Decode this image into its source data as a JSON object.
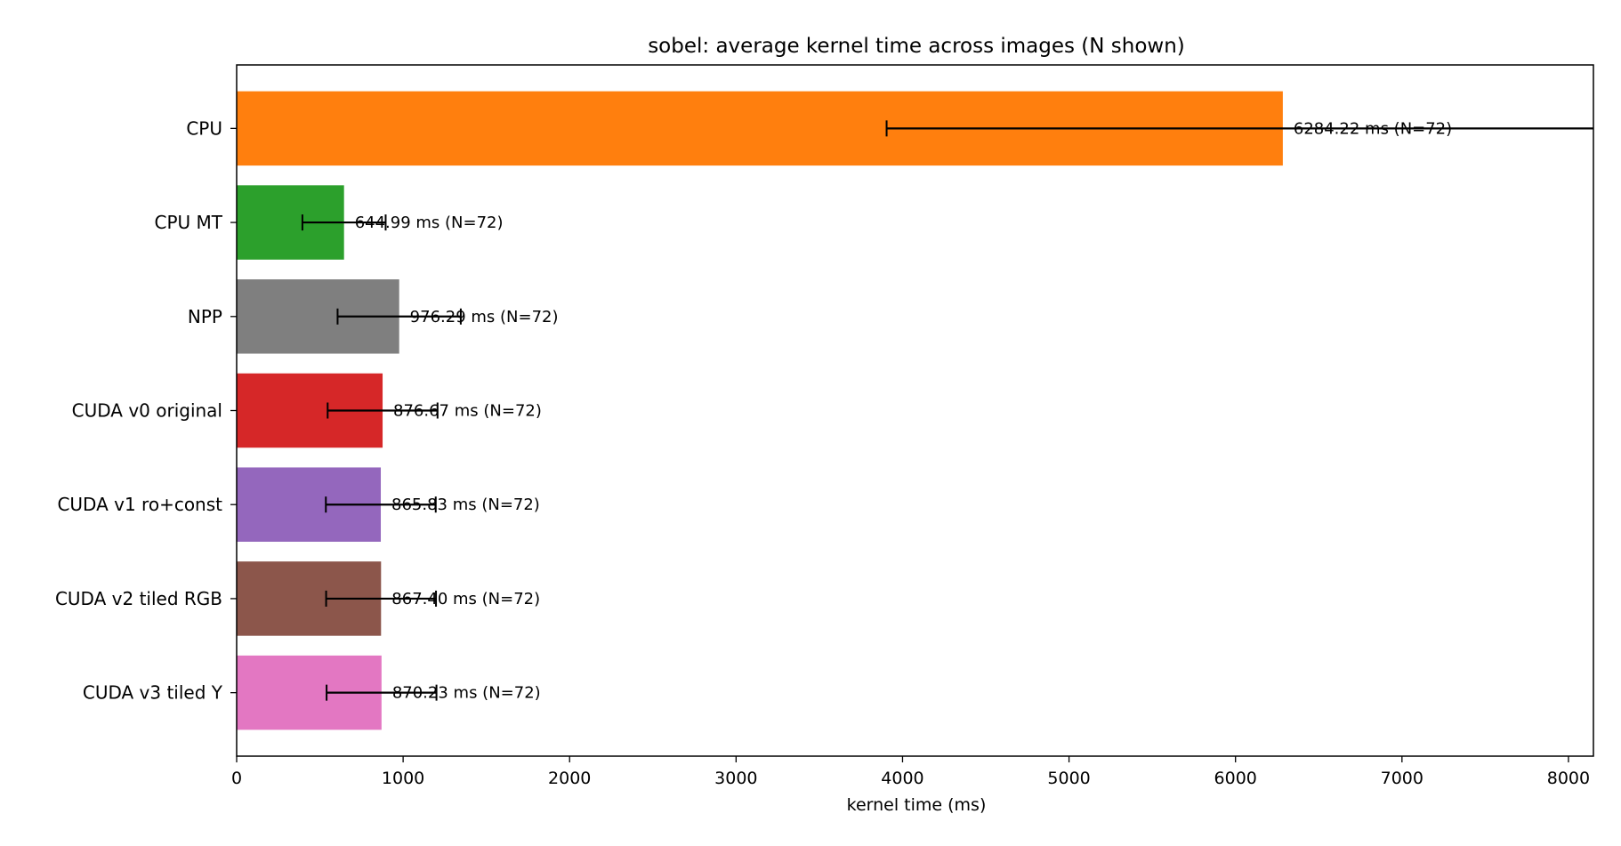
{
  "chart_data": {
    "type": "bar",
    "orientation": "horizontal",
    "title": "sobel: average kernel time across images (N shown)",
    "xlabel": "kernel time (ms)",
    "ylabel": "",
    "xlim": [
      0,
      8150
    ],
    "xticks": [
      0,
      1000,
      2000,
      3000,
      4000,
      5000,
      6000,
      7000,
      8000
    ],
    "grid": false,
    "categories": [
      "CPU",
      "CPU MT",
      "NPP",
      "CUDA v0 original",
      "CUDA v1 ro+const",
      "CUDA v2 tiled RGB",
      "CUDA v3 tiled Y"
    ],
    "values": [
      6284.22,
      644.99,
      976.29,
      876.67,
      865.83,
      867.4,
      870.23
    ],
    "errors": [
      2380,
      250,
      370,
      330,
      330,
      330,
      330
    ],
    "colors": [
      "#ff7f0e",
      "#2ca02c",
      "#7f7f7f",
      "#d62728",
      "#9467bd",
      "#8c564b",
      "#e377c2"
    ],
    "data_labels": [
      "6284.22 ms  (N=72)",
      "644.99 ms  (N=72)",
      "976.29 ms  (N=72)",
      "876.67 ms  (N=72)",
      "865.83 ms  (N=72)",
      "867.40 ms  (N=72)",
      "870.23 ms  (N=72)"
    ]
  }
}
